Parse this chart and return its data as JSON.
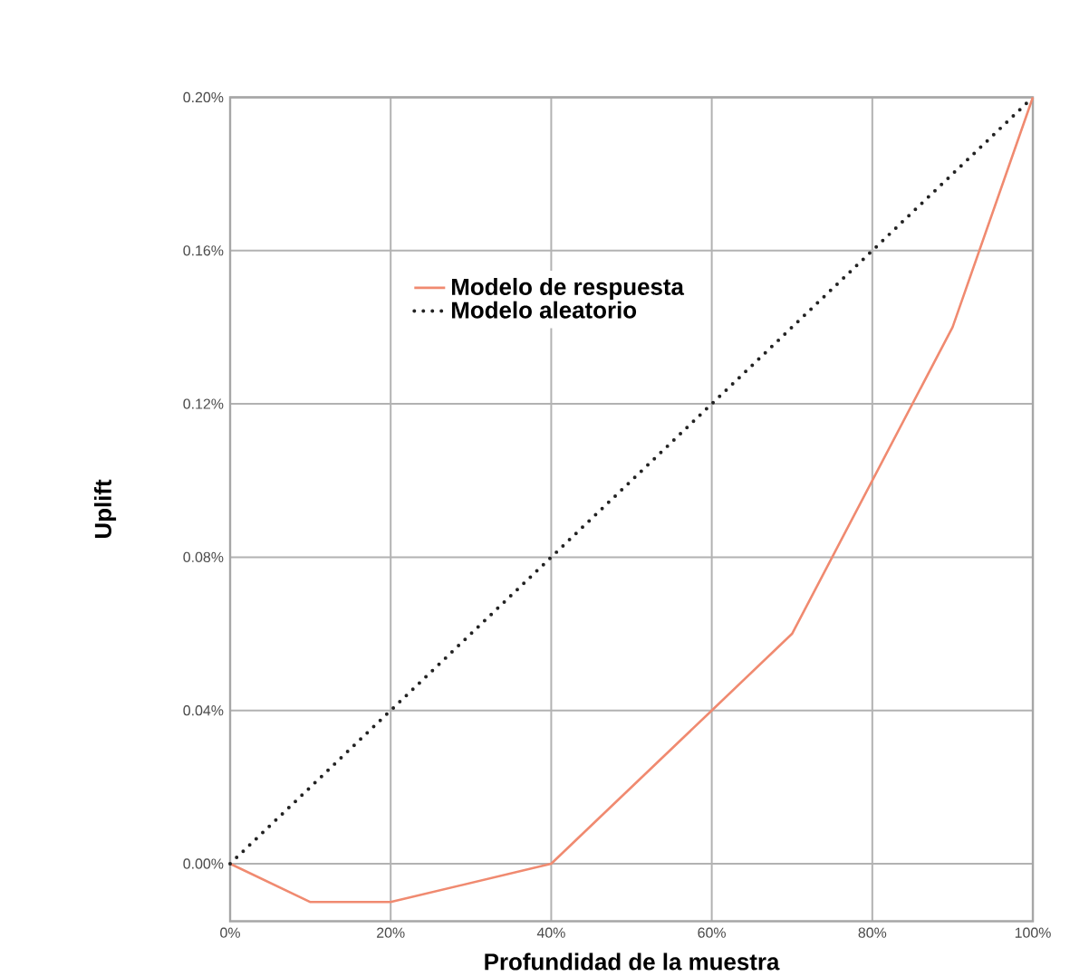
{
  "chart_data": {
    "type": "line",
    "xlabel": "Profundidad de la muestra",
    "ylabel": "Uplift",
    "x": [
      0,
      10,
      20,
      40,
      60,
      70,
      80,
      90,
      100
    ],
    "series": [
      {
        "name": "Modelo de respuesta",
        "color": "#f08a70",
        "line_style": "solid",
        "values": [
          0,
          -0.01,
          -0.01,
          0,
          0.04,
          0.06,
          0.1,
          0.14,
          0.2
        ]
      },
      {
        "name": "Modelo aleatorio",
        "color": "#222222",
        "line_style": "dotted",
        "x": [
          0,
          100
        ],
        "values": [
          0,
          0.2
        ]
      }
    ],
    "xlim": [
      0,
      100
    ],
    "ylim": [
      -0.015,
      0.2
    ],
    "xticks": [
      {
        "value": 0,
        "label": "0%"
      },
      {
        "value": 20,
        "label": "20%"
      },
      {
        "value": 40,
        "label": "40%"
      },
      {
        "value": 60,
        "label": "60%"
      },
      {
        "value": 80,
        "label": "80%"
      },
      {
        "value": 100,
        "label": "100%"
      }
    ],
    "yticks": [
      {
        "value": 0,
        "label": "0.00%"
      },
      {
        "value": 0.04,
        "label": "0.04%"
      },
      {
        "value": 0.08,
        "label": "0.08%"
      },
      {
        "value": 0.12,
        "label": "0.12%"
      },
      {
        "value": 0.16,
        "label": "0.16%"
      },
      {
        "value": 0.2,
        "label": "0.20%"
      }
    ],
    "grid": true,
    "legend": "top left",
    "marker": "none"
  }
}
